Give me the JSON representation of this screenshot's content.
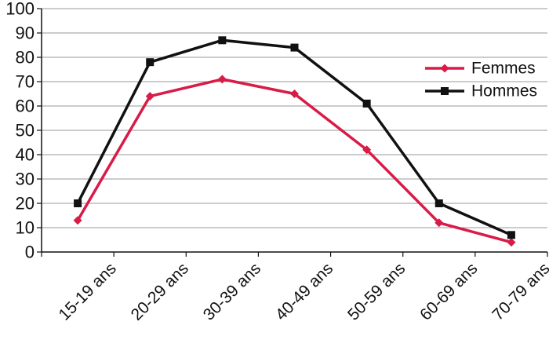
{
  "chart_data": {
    "type": "line",
    "categories": [
      "15-19 ans",
      "20-29 ans",
      "30-39 ans",
      "40-49 ans",
      "50-59 ans",
      "60-69 ans",
      "70-79 ans"
    ],
    "series": [
      {
        "name": "Femmes",
        "color": "#d81b47",
        "marker": "diamond",
        "values": [
          13,
          64,
          71,
          65,
          42,
          12,
          4
        ]
      },
      {
        "name": "Hommes",
        "color": "#111111",
        "marker": "square",
        "values": [
          20,
          78,
          87,
          84,
          61,
          20,
          7
        ]
      }
    ],
    "ylim": [
      0,
      100
    ],
    "yticks": [
      0,
      10,
      20,
      30,
      40,
      50,
      60,
      70,
      80,
      90,
      100
    ],
    "grid": true,
    "legend_position": "right",
    "title": "",
    "xlabel": "",
    "ylabel": ""
  }
}
